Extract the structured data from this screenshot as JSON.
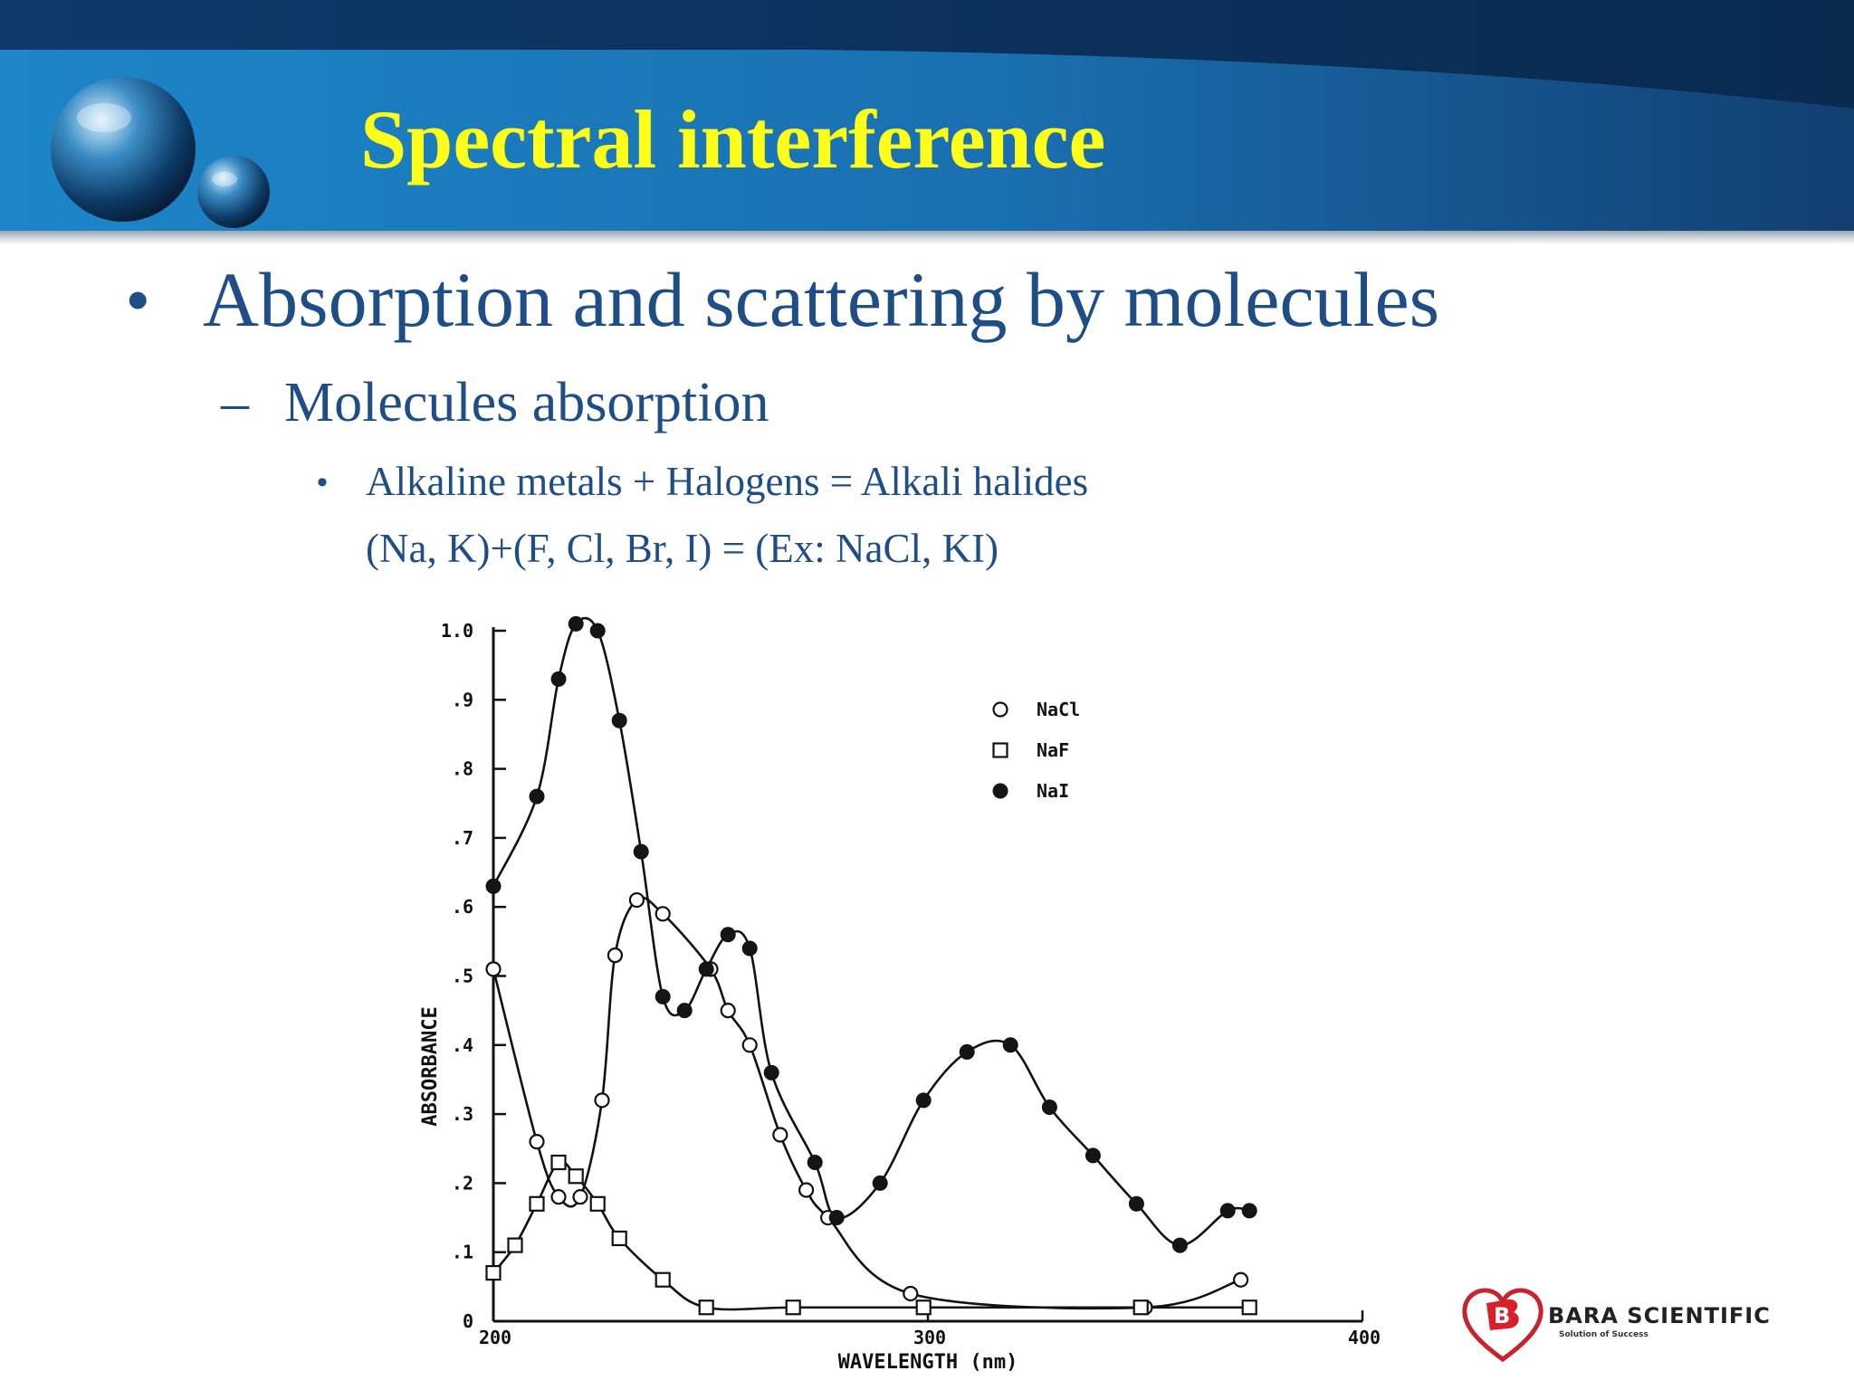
{
  "slide": {
    "title": "Spectral interference",
    "bullet_l1": "Absorption and scattering by molecules",
    "bullet_l2": "Molecules absorption",
    "bullet_l3": "Alkaline metals + Halogens = Alkali halides",
    "bullet_l3_cont": "(Na, K)+(F, Cl, Br, I) = (Ex: NaCl, KI)",
    "bullet_mark": "•",
    "dash_mark": "–"
  },
  "colors": {
    "header_blue": "#1a6fb0",
    "header_dark": "#0f3a66",
    "title_yellow": "#ffff1a",
    "body_text_blue": "#1f4e86"
  },
  "logo": {
    "name": "BARA SCIENTIFIC",
    "tagline": "Solution of Success",
    "icon": "heart-b-logo-icon"
  },
  "chart_data": {
    "type": "scatter",
    "xlabel": "WAVELENGTH (nm)",
    "ylabel": "ABSORBANCE",
    "xlim": [
      200,
      400
    ],
    "ylim": [
      0,
      1.0
    ],
    "x_ticks": [
      "200",
      "300",
      "400"
    ],
    "y_ticks": [
      "0",
      ".1",
      ".2",
      ".3",
      ".4",
      ".5",
      ".6",
      ".7",
      ".8",
      ".9",
      "1.0"
    ],
    "legend_position": "top-right",
    "grid": false,
    "series": [
      {
        "name": "NaCl",
        "marker": "open-circle",
        "x": [
          200,
          210,
          215,
          220,
          225,
          228,
          233,
          239,
          250,
          254,
          259,
          266,
          272,
          277,
          296,
          350,
          372
        ],
        "y": [
          0.51,
          0.26,
          0.18,
          0.18,
          0.32,
          0.53,
          0.61,
          0.59,
          0.51,
          0.45,
          0.4,
          0.27,
          0.19,
          0.15,
          0.04,
          0.02,
          0.06
        ]
      },
      {
        "name": "NaF",
        "marker": "open-square",
        "x": [
          200,
          205,
          210,
          215,
          219,
          224,
          229,
          239,
          249,
          269,
          299,
          349,
          374
        ],
        "y": [
          0.07,
          0.11,
          0.17,
          0.23,
          0.21,
          0.17,
          0.12,
          0.06,
          0.02,
          0.02,
          0.02,
          0.02,
          0.02
        ]
      },
      {
        "name": "NaI",
        "marker": "filled-circle",
        "x": [
          200,
          210,
          215,
          219,
          224,
          229,
          234,
          239,
          244,
          249,
          254,
          259,
          264,
          274,
          279,
          289,
          299,
          309,
          319,
          328,
          338,
          348,
          358,
          369,
          374
        ],
        "y": [
          0.63,
          0.76,
          0.93,
          1.01,
          1.0,
          0.87,
          0.68,
          0.47,
          0.45,
          0.51,
          0.56,
          0.54,
          0.36,
          0.23,
          0.15,
          0.2,
          0.32,
          0.39,
          0.4,
          0.31,
          0.24,
          0.17,
          0.11,
          0.16,
          0.16
        ]
      }
    ]
  }
}
